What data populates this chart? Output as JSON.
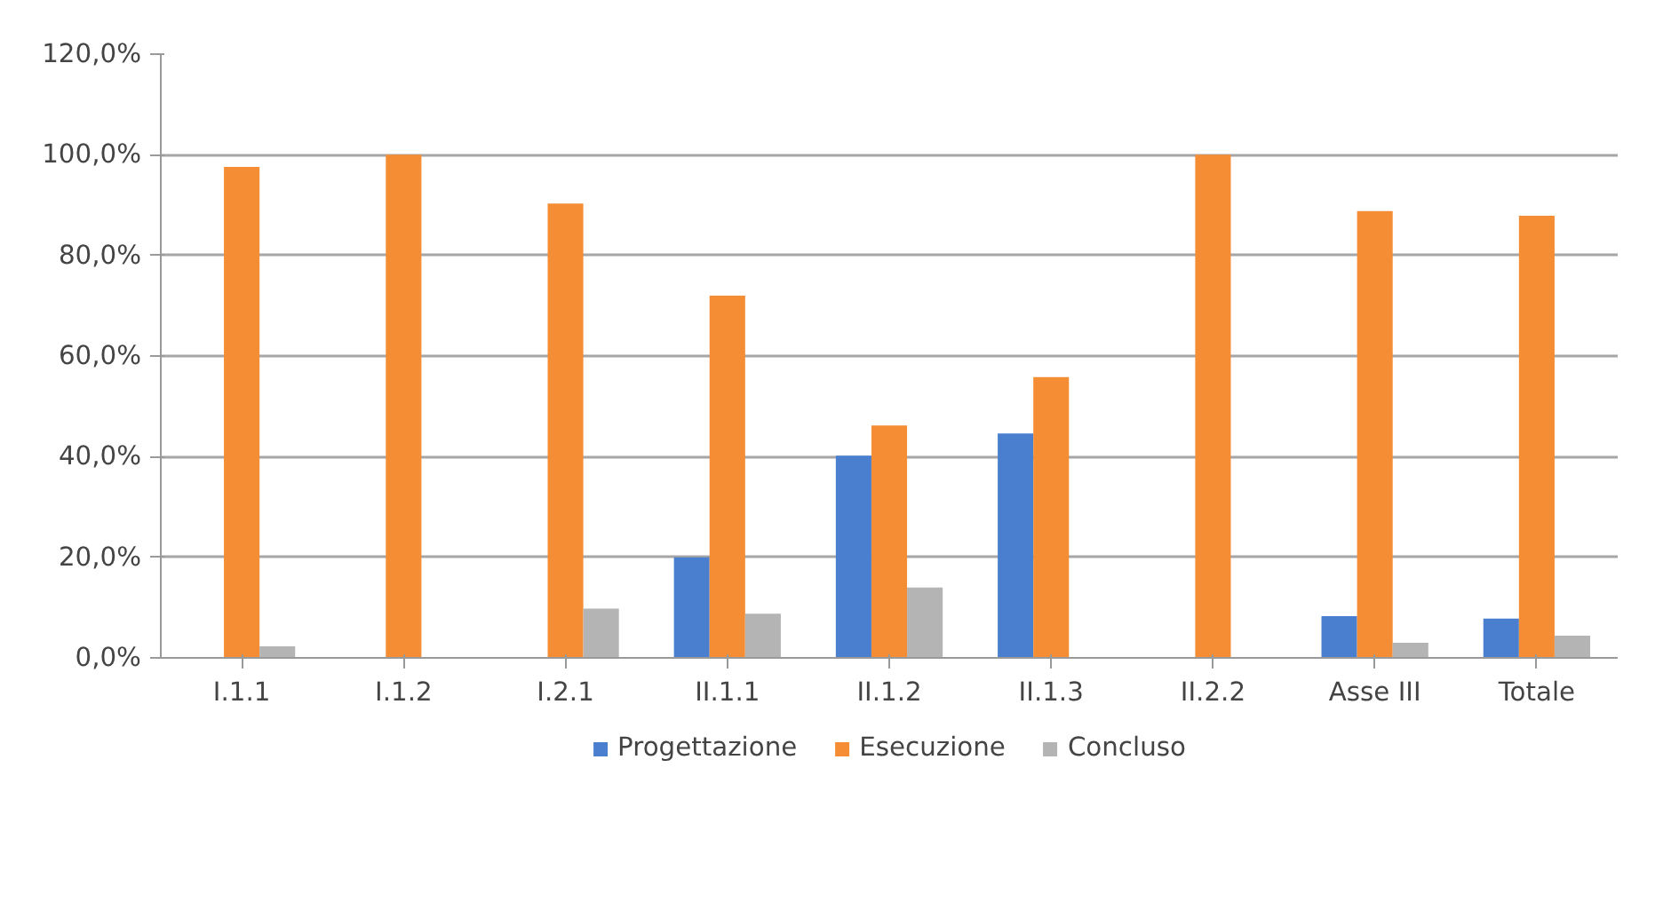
{
  "chart_data": {
    "type": "bar",
    "categories": [
      "I.1.1",
      "I.1.2",
      "I.2.1",
      "II.1.1",
      "II.1.2",
      "II.1.3",
      "II.2.2",
      "Asse III",
      "Totale"
    ],
    "series": [
      {
        "name": "Progettazione",
        "color": "#4a7fd0",
        "values": [
          0,
          0,
          0,
          20.0,
          40.2,
          44.6,
          0,
          8.3,
          7.8
        ]
      },
      {
        "name": "Esecuzione",
        "color": "#f48d34",
        "values": [
          97.6,
          100,
          90.3,
          72.0,
          46.2,
          55.8,
          100,
          88.8,
          87.9
        ]
      },
      {
        "name": "Concluso",
        "color": "#b4b4b4",
        "values": [
          2.3,
          0,
          9.8,
          8.8,
          14.0,
          0,
          0,
          3.0,
          4.4
        ]
      }
    ],
    "ylim": [
      0,
      120
    ],
    "yticks": [
      {
        "value": 0,
        "label": "0,0%"
      },
      {
        "value": 20,
        "label": "20,0%"
      },
      {
        "value": 40,
        "label": "40,0%"
      },
      {
        "value": 60,
        "label": "60,0%"
      },
      {
        "value": 80,
        "label": "80,0%"
      },
      {
        "value": 100,
        "label": "100,0%"
      },
      {
        "value": 120,
        "label": "120,0%"
      }
    ],
    "grid": "y",
    "legend": "bottom"
  }
}
